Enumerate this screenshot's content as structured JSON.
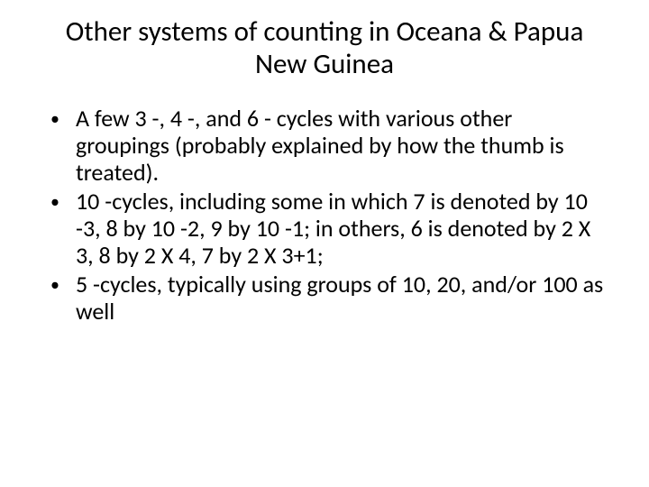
{
  "slide": {
    "title": "Other systems of counting in Oceana & Papua New Guinea",
    "bullets": [
      "A few 3 -, 4 -, and 6 - cycles with various other groupings (probably explained by how the thumb is treated).",
      "10 -cycles, including some in which 7 is denoted by 10 -3, 8 by 10 -2, 9 by 10 -1; in others, 6 is denoted by 2 X 3, 8 by 2 X 4, 7 by 2 X 3+1;",
      "5 -cycles, typically using groups of 10, 20, and/or 100 as well"
    ],
    "bullet_marker": "•"
  },
  "style": {
    "background_color": "#ffffff",
    "text_color": "#000000",
    "title_fontsize": 31,
    "body_fontsize": 26,
    "font_family": "Calibri"
  }
}
